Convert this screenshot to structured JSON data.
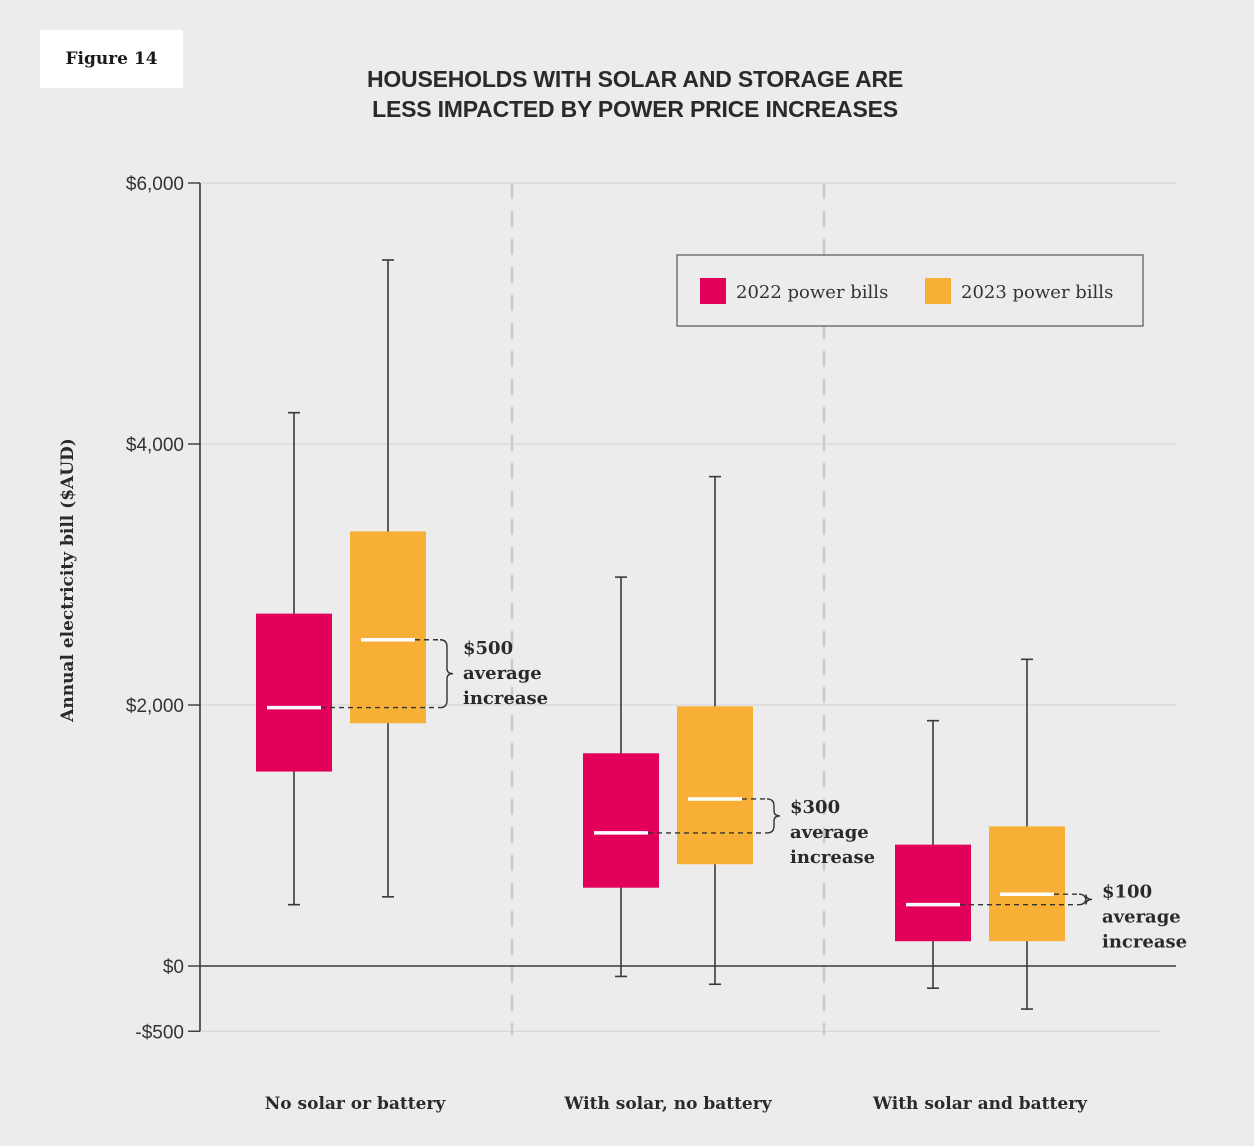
{
  "figure_label": "Figure 14",
  "chart_data": {
    "type": "box",
    "title": "HOUSEHOLDS WITH SOLAR AND STORAGE ARE",
    "title_line2": "LESS IMPACTED BY POWER PRICE INCREASES",
    "ylabel": "Annual electricity bill ($AUD)",
    "xlabel": "",
    "ylim": [
      -500,
      6000
    ],
    "yticks": [
      {
        "value": 6000,
        "label": "$6,000"
      },
      {
        "value": 4000,
        "label": "$4,000"
      },
      {
        "value": 2000,
        "label": "$2,000"
      },
      {
        "value": 0,
        "label": "$0"
      },
      {
        "value": -500,
        "label": "-$500"
      }
    ],
    "grid": true,
    "legend_position": "top-right",
    "series": [
      {
        "name": "2022 power bills",
        "color": "#e2005a"
      },
      {
        "name": "2023 power bills",
        "color": "#f7b035"
      }
    ],
    "categories": [
      {
        "label": "No solar or battery",
        "boxes": [
          {
            "min": 470,
            "q1": 1490,
            "median": 1980,
            "q3": 2700,
            "max": 4240
          },
          {
            "min": 530,
            "q1": 1860,
            "median": 2500,
            "q3": 3330,
            "max": 5410
          }
        ],
        "annotation": [
          "$500",
          "average",
          "increase"
        ]
      },
      {
        "label": "With solar, no battery",
        "boxes": [
          {
            "min": -80,
            "q1": 600,
            "median": 1020,
            "q3": 1630,
            "max": 2980
          },
          {
            "min": -140,
            "q1": 780,
            "median": 1280,
            "q3": 1990,
            "max": 3750
          }
        ],
        "annotation": [
          "$300",
          "average",
          "increase"
        ]
      },
      {
        "label": "With solar and battery",
        "boxes": [
          {
            "min": -170,
            "q1": 190,
            "median": 470,
            "q3": 930,
            "max": 1880
          },
          {
            "min": -330,
            "q1": 190,
            "median": 550,
            "q3": 1070,
            "max": 2350
          }
        ],
        "annotation": [
          "$100",
          "average",
          "increase"
        ]
      }
    ]
  }
}
